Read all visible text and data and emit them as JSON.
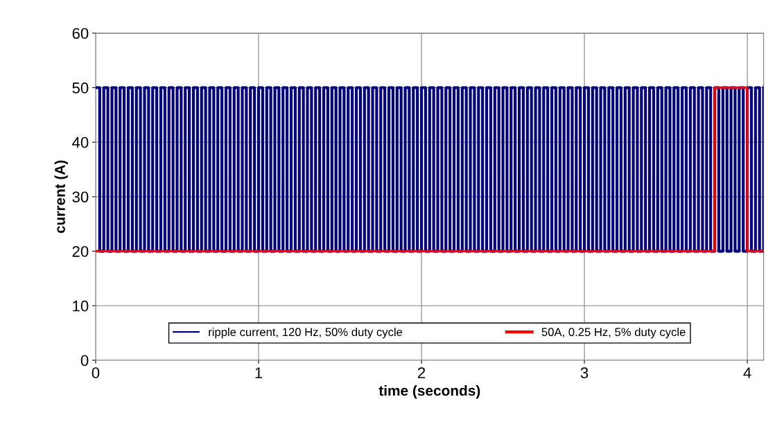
{
  "chart_data": {
    "type": "step",
    "xlabel": "time (seconds)",
    "ylabel": "current (A)",
    "xlim": [
      0,
      4.1
    ],
    "xticks": [
      0,
      1,
      2,
      3,
      4
    ],
    "ylim": [
      0,
      60
    ],
    "yticks": [
      0,
      10,
      20,
      30,
      40,
      50,
      60
    ],
    "grid": true,
    "legend": "bottom",
    "line_style": "solid",
    "marker": "none",
    "series": [
      {
        "name": "ripple current, 120 Hz, 50% duty cycle",
        "color": "#000080",
        "x": [
          0,
          0.025,
          0.05,
          0.075,
          0.1,
          0.125,
          0.15,
          0.175,
          0.2,
          0.225,
          0.25,
          0.275,
          0.3,
          0.325,
          0.35,
          0.375,
          0.4,
          0.425,
          0.45,
          0.475,
          0.5,
          0.525,
          0.55,
          0.575,
          0.6,
          0.625,
          0.65,
          0.675,
          0.7,
          0.725,
          0.75,
          0.775,
          0.8,
          0.825,
          0.85,
          0.875,
          0.9,
          0.925,
          0.95,
          0.975,
          1,
          1.025,
          1.05,
          1.075,
          1.1,
          1.125,
          1.15,
          1.175,
          1.2,
          1.225,
          1.25,
          1.275,
          1.3,
          1.325,
          1.35,
          1.375,
          1.4,
          1.425,
          1.45,
          1.475,
          1.5,
          1.525,
          1.55,
          1.575,
          1.6,
          1.625,
          1.65,
          1.675,
          1.7,
          1.725,
          1.75,
          1.775,
          1.8,
          1.825,
          1.85,
          1.875,
          1.9,
          1.925,
          1.95,
          1.975,
          2,
          2.025,
          2.05,
          2.075,
          2.1,
          2.125,
          2.15,
          2.175,
          2.2,
          2.225,
          2.25,
          2.275,
          2.3,
          2.325,
          2.35,
          2.375,
          2.4,
          2.425,
          2.45,
          2.475,
          2.5,
          2.525,
          2.55,
          2.575,
          2.6,
          2.625,
          2.65,
          2.675,
          2.7,
          2.725,
          2.75,
          2.775,
          2.8,
          2.825,
          2.85,
          2.875,
          2.9,
          2.925,
          2.95,
          2.975,
          3,
          3.025,
          3.05,
          3.075,
          3.1,
          3.125,
          3.15,
          3.175,
          3.2,
          3.225,
          3.25,
          3.275,
          3.3,
          3.325,
          3.35,
          3.375,
          3.4,
          3.425,
          3.45,
          3.475,
          3.5,
          3.525,
          3.55,
          3.575,
          3.6,
          3.625,
          3.65,
          3.675,
          3.7,
          3.725,
          3.75,
          3.775,
          3.8,
          3.825,
          3.85,
          3.875,
          3.9,
          3.925,
          3.95,
          3.975,
          4,
          4.025,
          4.05,
          4.075,
          4.1
        ],
        "values": [
          50,
          20,
          50,
          20,
          50,
          20,
          50,
          20,
          50,
          20,
          50,
          20,
          50,
          20,
          50,
          20,
          50,
          20,
          50,
          20,
          50,
          20,
          50,
          20,
          50,
          20,
          50,
          20,
          50,
          20,
          50,
          20,
          50,
          20,
          50,
          20,
          50,
          20,
          50,
          20,
          50,
          20,
          50,
          20,
          50,
          20,
          50,
          20,
          50,
          20,
          50,
          20,
          50,
          20,
          50,
          20,
          50,
          20,
          50,
          20,
          50,
          20,
          50,
          20,
          50,
          20,
          50,
          20,
          50,
          20,
          50,
          20,
          50,
          20,
          50,
          20,
          50,
          20,
          50,
          20,
          50,
          20,
          50,
          20,
          50,
          20,
          50,
          20,
          50,
          20,
          50,
          20,
          50,
          20,
          50,
          20,
          50,
          20,
          50,
          20,
          50,
          20,
          50,
          20,
          50,
          20,
          50,
          20,
          50,
          20,
          50,
          20,
          50,
          20,
          50,
          20,
          50,
          20,
          50,
          20,
          50,
          20,
          50,
          20,
          50,
          20,
          50,
          20,
          50,
          20,
          50,
          20,
          50,
          20,
          50,
          20,
          50,
          20,
          50,
          20,
          50,
          20,
          50,
          20,
          50,
          20,
          50,
          20,
          50,
          20,
          50,
          20,
          50,
          20,
          50,
          20,
          50,
          20,
          50,
          20,
          50,
          20,
          50,
          20,
          50
        ]
      },
      {
        "name": "50A, 0.25 Hz, 5% duty cycle",
        "color": "#ff0000",
        "x": [
          0,
          3.8,
          4.0,
          4.1
        ],
        "values": [
          20,
          50,
          20,
          20
        ]
      }
    ]
  }
}
